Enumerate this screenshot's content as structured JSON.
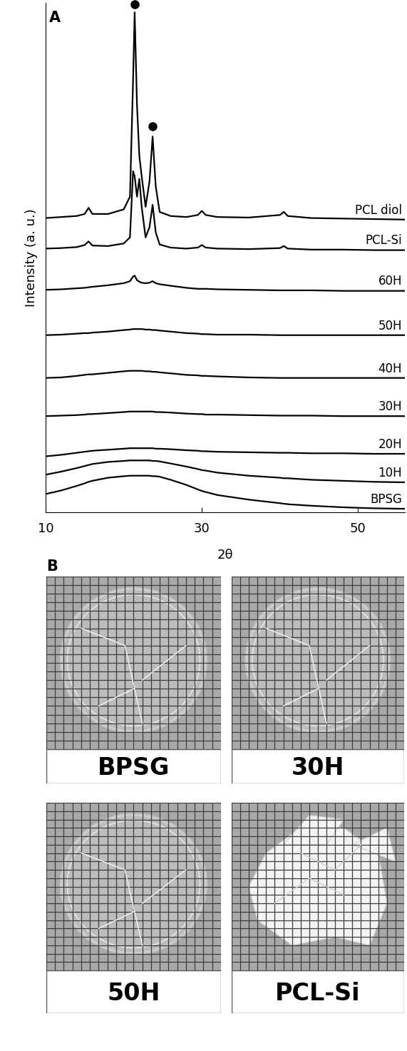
{
  "chart_data": {
    "type": "line",
    "panel_label": "A",
    "x_label": "2θ",
    "y_label": "Intensity (a. u.)",
    "xlim": [
      10,
      56
    ],
    "xticks": [
      10,
      30,
      50
    ],
    "ylim": [
      0,
      100
    ],
    "yticks": [],
    "tick_labels": "x",
    "grid": false,
    "x": [
      10,
      12,
      14,
      15,
      15.5,
      16,
      18,
      20,
      20.8,
      21.2,
      21.4,
      21.7,
      22.0,
      22.3,
      22.8,
      23.3,
      23.7,
      24.1,
      24.6,
      26,
      28,
      29.5,
      30,
      30.5,
      32,
      36,
      40,
      40.5,
      41,
      44,
      48,
      52,
      56
    ],
    "series": [
      {
        "name": "PCL diol",
        "color": "#000000",
        "line_style": "solid",
        "values": [
          57.8,
          58.0,
          58.2,
          58.6,
          59.8,
          58.6,
          58.6,
          59.5,
          62,
          85,
          98.2,
          80,
          70,
          66,
          60,
          65,
          73.8,
          64,
          59,
          58.2,
          58,
          58.4,
          59.2,
          58.4,
          58,
          57.9,
          58.4,
          59.0,
          58.2,
          57.8,
          57.7,
          57.6,
          57.5
        ]
      },
      {
        "name": "PCL-Si",
        "color": "#000000",
        "line_style": "solid",
        "values": [
          51.8,
          51.9,
          52.1,
          52.5,
          53.2,
          52.4,
          52.3,
          52.8,
          54,
          67,
          66,
          62,
          65.5,
          60,
          54,
          56,
          60.4,
          55,
          52.6,
          52,
          51.8,
          52,
          52.5,
          52,
          51.8,
          51.7,
          51.9,
          52.3,
          51.8,
          51.6,
          51.6,
          51.5,
          51.5
        ]
      },
      {
        "name": "60H",
        "color": "#000000",
        "line_style": "solid",
        "values": [
          43.7,
          43.8,
          44,
          44.1,
          44.2,
          44.3,
          44.6,
          45,
          45.4,
          46.3,
          46.5,
          45.6,
          45.3,
          45.1,
          45,
          45.1,
          45.4,
          45,
          44.8,
          44.5,
          44.1,
          43.9,
          43.9,
          43.9,
          43.8,
          43.7,
          43.6,
          43.6,
          43.6,
          43.6,
          43.5,
          43.5,
          43.5
        ]
      },
      {
        "name": "50H",
        "color": "#000000",
        "line_style": "solid",
        "values": [
          34.8,
          34.9,
          35.1,
          35.2,
          35.2,
          35.3,
          35.5,
          35.8,
          35.9,
          36,
          36,
          36,
          36,
          36,
          35.9,
          35.9,
          35.8,
          35.8,
          35.7,
          35.5,
          35.2,
          35.1,
          35,
          35,
          34.9,
          34.9,
          34.8,
          34.8,
          34.8,
          34.8,
          34.8,
          34.8,
          34.8
        ]
      },
      {
        "name": "40H",
        "color": "#000000",
        "line_style": "solid",
        "values": [
          26.4,
          26.5,
          26.8,
          27,
          27.1,
          27.1,
          27.4,
          27.7,
          27.8,
          27.8,
          27.8,
          27.8,
          27.8,
          27.8,
          27.7,
          27.7,
          27.6,
          27.6,
          27.5,
          27.3,
          27,
          26.9,
          26.8,
          26.8,
          26.7,
          26.5,
          26.4,
          26.4,
          26.4,
          26.4,
          26.4,
          26.4,
          26.4
        ]
      },
      {
        "name": "30H",
        "color": "#000000",
        "line_style": "solid",
        "values": [
          18.9,
          19,
          19.1,
          19.2,
          19.3,
          19.3,
          19.5,
          19.7,
          19.8,
          19.8,
          19.8,
          19.8,
          19.8,
          19.8,
          19.8,
          19.8,
          19.8,
          19.7,
          19.7,
          19.6,
          19.4,
          19.3,
          19.3,
          19.2,
          19.2,
          19.1,
          19,
          19,
          19,
          19,
          18.9,
          18.9,
          18.9
        ]
      },
      {
        "name": "20H",
        "color": "#000000",
        "line_style": "solid",
        "values": [
          11,
          11.3,
          11.7,
          11.9,
          12,
          12.1,
          12.3,
          12.5,
          12.6,
          12.6,
          12.6,
          12.6,
          12.6,
          12.6,
          12.6,
          12.6,
          12.6,
          12.5,
          12.5,
          12.4,
          12.2,
          12.1,
          12,
          12,
          11.9,
          11.8,
          11.7,
          11.7,
          11.7,
          11.6,
          11.6,
          11.5,
          11.5
        ]
      },
      {
        "name": "10H",
        "color": "#000000",
        "line_style": "solid",
        "values": [
          7.4,
          8,
          8.7,
          9.1,
          9.3,
          9.5,
          9.9,
          10.1,
          10.2,
          10.2,
          10.2,
          10.2,
          10.2,
          10.2,
          10.2,
          10.2,
          10.1,
          10.1,
          10,
          9.6,
          9,
          8.5,
          8.3,
          8.2,
          7.8,
          7.2,
          6.8,
          6.7,
          6.7,
          6.4,
          6.2,
          6,
          5.9
        ]
      },
      {
        "name": "BPSG",
        "color": "#000000",
        "line_style": "solid",
        "values": [
          3.6,
          4.3,
          5.2,
          5.7,
          6,
          6.2,
          6.8,
          7.1,
          7.2,
          7.2,
          7.2,
          7.2,
          7.2,
          7.2,
          7.2,
          7.2,
          7.1,
          7.1,
          7,
          6.4,
          5.4,
          4.5,
          4.2,
          4,
          3.4,
          2.5,
          1.8,
          1.7,
          1.6,
          1.3,
          1,
          0.8,
          0.7
        ]
      }
    ],
    "peak_markers": {
      "x": [
        21.4,
        23.7
      ],
      "y": [
        99.8,
        75.8
      ],
      "marker": "o",
      "color": "#000000"
    }
  },
  "photos": {
    "panel_label": "B",
    "panels": [
      {
        "label": "BPSG"
      },
      {
        "label": "30H"
      },
      {
        "label": "50H"
      },
      {
        "label": "PCL-Si"
      }
    ]
  }
}
